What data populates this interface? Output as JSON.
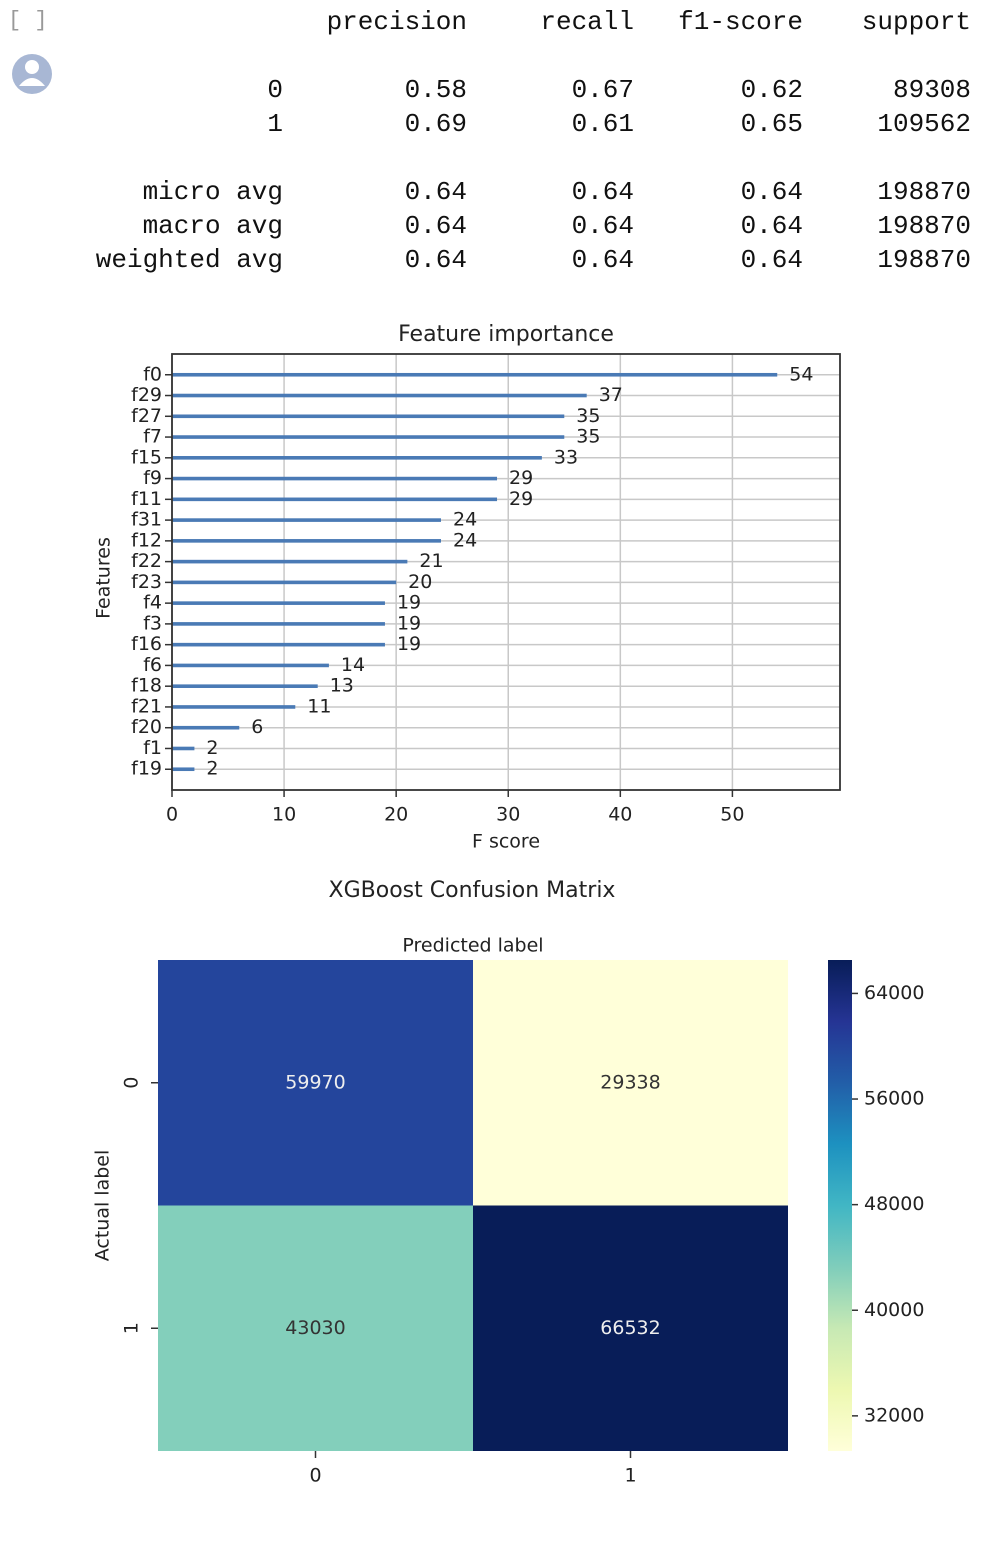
{
  "cell": {
    "prompt": "[ ]"
  },
  "report": {
    "columns": [
      "precision",
      "recall",
      "f1-score",
      "support"
    ],
    "rows": [
      {
        "label": "0",
        "values": [
          0.58,
          0.67,
          0.62,
          89308
        ]
      },
      {
        "label": "1",
        "values": [
          0.69,
          0.61,
          0.65,
          109562
        ]
      },
      {
        "label": "micro avg",
        "values": [
          0.64,
          0.64,
          0.64,
          198870
        ]
      },
      {
        "label": "macro avg",
        "values": [
          0.64,
          0.64,
          0.64,
          198870
        ]
      },
      {
        "label": "weighted avg",
        "values": [
          0.64,
          0.64,
          0.64,
          198870
        ]
      }
    ]
  },
  "chart_data": [
    {
      "type": "barh",
      "title": "Feature importance",
      "xlabel": "F score",
      "ylabel": "Features",
      "categories": [
        "f0",
        "f29",
        "f27",
        "f7",
        "f15",
        "f9",
        "f11",
        "f31",
        "f12",
        "f22",
        "f23",
        "f4",
        "f3",
        "f16",
        "f6",
        "f18",
        "f21",
        "f20",
        "f1",
        "f19"
      ],
      "values": [
        54,
        37,
        35,
        35,
        33,
        29,
        29,
        24,
        24,
        21,
        20,
        19,
        19,
        19,
        14,
        13,
        11,
        6,
        2,
        2
      ],
      "color": "#4a7ab5",
      "xlim": [
        0,
        59.6
      ],
      "xticks": [
        0,
        10,
        20,
        30,
        40,
        50
      ],
      "grid": true
    },
    {
      "type": "heatmap",
      "title": "XGBoost Confusion Matrix",
      "xlabel": "Predicted label",
      "ylabel": "Actual label",
      "x_categories": [
        "0",
        "1"
      ],
      "y_categories": [
        "0",
        "1"
      ],
      "values": [
        [
          59970,
          29338
        ],
        [
          43030,
          66532
        ]
      ],
      "colormap": "YlGnBu",
      "colorbar": {
        "lim": [
          29338,
          66532
        ],
        "ticks": [
          32000,
          40000,
          48000,
          56000,
          64000
        ]
      }
    }
  ]
}
